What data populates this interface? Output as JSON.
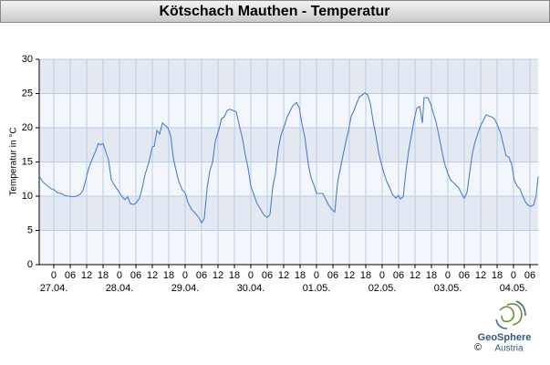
{
  "chart_data": {
    "type": "line",
    "title": "Kötschach Mauthen - Temperatur",
    "ylabel": "Temperatur in °C",
    "color": "#4a7fd4",
    "grid": true,
    "xlim": [
      -5.33,
      177
    ],
    "ylim": [
      0,
      30
    ],
    "yticks": [
      0,
      5,
      10,
      15,
      20,
      25,
      30
    ],
    "xticks": [
      0,
      {
        "value": 6,
        "label": "06"
      },
      {
        "value": 12,
        "label": "12"
      },
      {
        "value": 18,
        "label": "18"
      },
      {
        "value": 24,
        "label": "0"
      },
      {
        "value": 30,
        "label": "06"
      },
      {
        "value": 36,
        "label": "12"
      },
      {
        "value": 42,
        "label": "18"
      },
      {
        "value": 48,
        "label": "0"
      },
      {
        "value": 54,
        "label": "06"
      },
      {
        "value": 60,
        "label": "12"
      },
      {
        "value": 66,
        "label": "18"
      },
      {
        "value": 72,
        "label": "0"
      },
      {
        "value": 78,
        "label": "06"
      },
      {
        "value": 84,
        "label": "12"
      },
      {
        "value": 90,
        "label": "18"
      },
      {
        "value": 96,
        "label": "0"
      },
      {
        "value": 102,
        "label": "06"
      },
      {
        "value": 108,
        "label": "12"
      },
      {
        "value": 114,
        "label": "18"
      },
      {
        "value": 120,
        "label": "0"
      },
      {
        "value": 126,
        "label": "06"
      },
      {
        "value": 132,
        "label": "12"
      },
      {
        "value": 138,
        "label": "18"
      },
      {
        "value": 144,
        "label": "0"
      },
      {
        "value": 150,
        "label": "06"
      },
      {
        "value": 156,
        "label": "12"
      },
      {
        "value": 162,
        "label": "18"
      },
      {
        "value": 168,
        "label": "0"
      },
      {
        "value": 174,
        "label": "06"
      }
    ],
    "xdates": [
      {
        "value": 0,
        "label": "27.04."
      },
      {
        "value": 24,
        "label": "28.04."
      },
      {
        "value": 48,
        "label": "29.04."
      },
      {
        "value": 72,
        "label": "30.04."
      },
      {
        "value": 96,
        "label": "01.05."
      },
      {
        "value": 120,
        "label": "02.05."
      },
      {
        "value": 144,
        "label": "03.05."
      },
      {
        "value": 168,
        "label": "04.05."
      }
    ],
    "x": [
      -5.3,
      -4,
      -2.3,
      -1,
      0.3,
      1.3,
      2.7,
      4,
      5.3,
      7,
      8.3,
      9.7,
      10.7,
      11.7,
      12.7,
      13.7,
      15,
      16.3,
      17,
      18,
      19,
      20,
      21,
      22.3,
      23.7,
      25,
      26,
      27,
      28,
      29.3,
      30.3,
      31.3,
      32.3,
      33.3,
      34.7,
      36,
      36.7,
      37.7,
      38.7,
      39.7,
      40.7,
      41.7,
      42.7,
      43.7,
      44.7,
      45.7,
      47,
      48,
      49,
      50.3,
      51.7,
      53,
      54,
      55,
      56,
      57,
      58,
      59,
      60.3,
      61.3,
      62.3,
      63.3,
      64.3,
      65.7,
      66.7,
      67.7,
      69,
      70,
      71,
      72,
      73.3,
      74.3,
      75.7,
      76.7,
      78,
      79,
      80,
      81,
      82,
      83,
      84.3,
      85.3,
      86.3,
      87.3,
      88.7,
      89.7,
      90.7,
      91.7,
      93,
      94,
      95,
      96,
      97.3,
      98.3,
      99.3,
      100.3,
      101.7,
      102.7,
      103.7,
      104.7,
      105.7,
      106.7,
      107.7,
      108.7,
      109.7,
      110.7,
      111.7,
      112.7,
      113.7,
      114.7,
      115.7,
      116.7,
      117.7,
      118.7,
      119.7,
      120.7,
      121.7,
      122.7,
      123.7,
      125,
      126,
      126.7,
      127.7,
      128.7,
      129.7,
      130.7,
      131.7,
      132.7,
      133.7,
      134.7,
      135.3,
      136.7,
      137.7,
      138.7,
      139.7,
      140.7,
      141.7,
      142.7,
      144,
      145,
      146,
      147,
      148,
      149,
      150,
      151,
      152,
      153,
      154,
      155,
      156,
      157,
      158,
      159,
      160,
      161,
      162,
      163.3,
      164.3,
      165.3,
      166.3,
      167.3,
      168.3,
      169.3,
      170.3,
      171.3,
      172.3,
      173.3,
      174.3,
      175.3,
      176.3,
      177
    ],
    "values": [
      12.9,
      12.1,
      11.5,
      11.1,
      10.9,
      10.5,
      10.4,
      10.1,
      10,
      9.9,
      10,
      10.3,
      10.9,
      12.4,
      14,
      15.1,
      16.3,
      17.7,
      17.5,
      17.7,
      16.5,
      15.3,
      12.4,
      11.5,
      10.7,
      9.9,
      9.5,
      9.9,
      8.9,
      8.8,
      9.1,
      9.7,
      11.2,
      13.1,
      14.9,
      17.2,
      17.3,
      19.6,
      19.1,
      20.7,
      20.3,
      20,
      18.9,
      15.5,
      13.7,
      12.1,
      10.9,
      10.5,
      9.1,
      8.1,
      7.5,
      6.9,
      6.1,
      6.7,
      11.1,
      13.7,
      14.9,
      18,
      19.7,
      21.3,
      21.6,
      22.5,
      22.7,
      22.5,
      22.3,
      20.5,
      18.3,
      16,
      14.1,
      11.5,
      10,
      8.9,
      8,
      7.3,
      6.9,
      7.3,
      11.3,
      13.3,
      16.8,
      18.9,
      20.3,
      21.6,
      22.4,
      23.2,
      23.7,
      22.9,
      20.5,
      18.7,
      14.7,
      12.7,
      11.7,
      10.4,
      10.4,
      10.4,
      9.6,
      8.8,
      8,
      7.7,
      12,
      14,
      16,
      17.9,
      19.6,
      21.7,
      22.5,
      23.6,
      24.5,
      24.8,
      25.1,
      24.8,
      23.5,
      20.9,
      18.9,
      16.4,
      14.7,
      13.3,
      12.1,
      11.3,
      10.3,
      9.7,
      10.1,
      9.6,
      9.9,
      13.7,
      16.7,
      18.9,
      21.2,
      22.9,
      23.1,
      20.7,
      24.4,
      24.4,
      23.5,
      22.1,
      20.8,
      18.9,
      16.9,
      14.9,
      13.3,
      12.4,
      12,
      11.6,
      11.2,
      10.4,
      9.7,
      10.5,
      13.5,
      16.3,
      18,
      19.2,
      20.3,
      21.1,
      21.9,
      21.7,
      21.6,
      21.3,
      20.5,
      19.2,
      17.5,
      15.9,
      15.7,
      14.7,
      12.3,
      11.5,
      11.1,
      10.1,
      9.2,
      8.7,
      8.5,
      8.7,
      10.1,
      12.9
    ]
  },
  "footer": {
    "brand": "GeoSphere",
    "sub": "Austria",
    "copyright": "©"
  }
}
